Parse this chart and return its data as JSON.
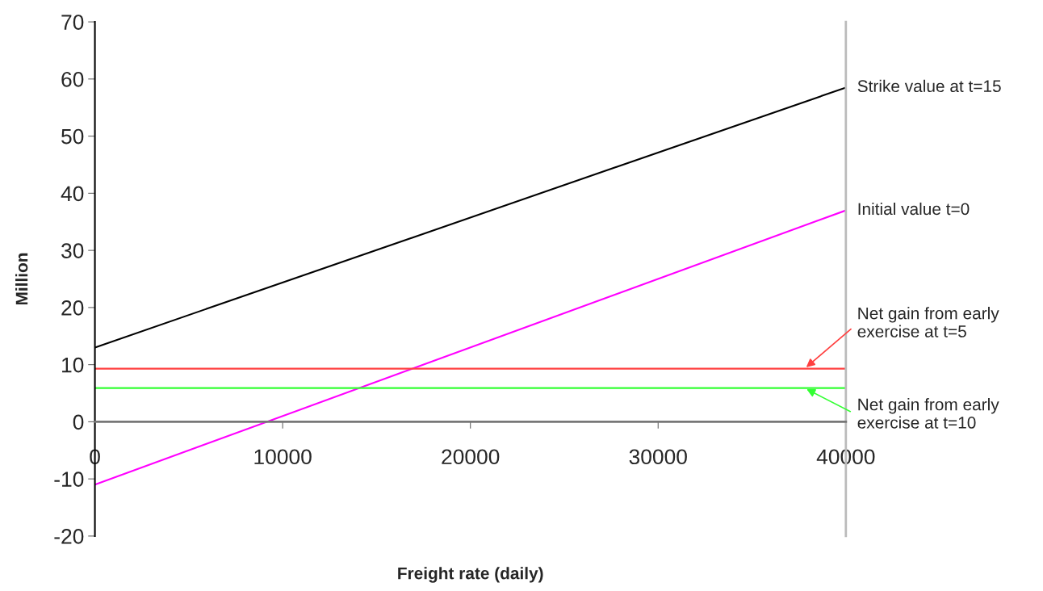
{
  "chart_data": {
    "type": "line",
    "xlabel": "Freight rate (daily)",
    "ylabel": "Million",
    "x": [
      0,
      40000
    ],
    "series": [
      {
        "name": "Strike value at t=15",
        "color": "#000000",
        "values": [
          13,
          58.5
        ]
      },
      {
        "name": "Initial value t=0",
        "color": "#ff00ff",
        "values": [
          -11,
          37
        ]
      },
      {
        "name": "Net gain from early exercise at t=5",
        "color": "#ff4040",
        "values": [
          9.3,
          9.3
        ]
      },
      {
        "name": "Net gain from early exercise at t=10",
        "color": "#33ff33",
        "values": [
          5.9,
          5.9
        ]
      }
    ],
    "xlim": [
      0,
      40000
    ],
    "xticks": [
      0,
      10000,
      20000,
      30000,
      40000
    ],
    "ylim": [
      -20,
      70
    ],
    "yticks": [
      -20,
      -10,
      0,
      10,
      20,
      30,
      40,
      50,
      60,
      70
    ],
    "grid": false,
    "legend": "right",
    "marker": "none",
    "line_style": "solid"
  }
}
